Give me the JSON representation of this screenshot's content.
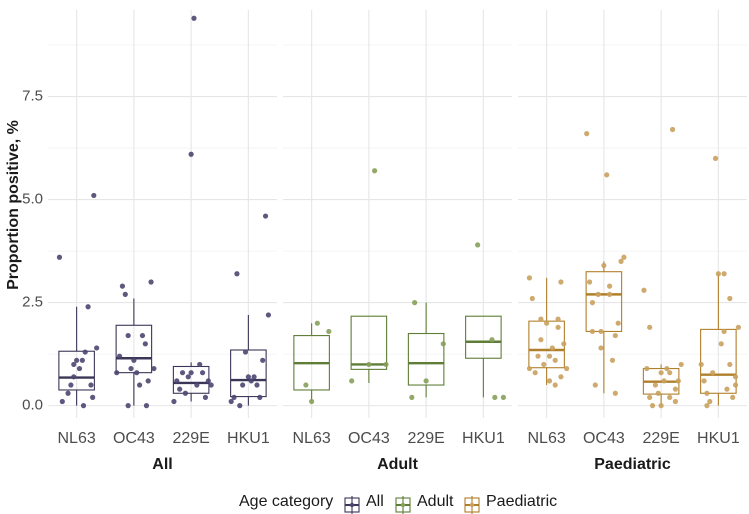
{
  "chart_data": {
    "type": "boxplot",
    "ylabel": "Proportion positive, %",
    "ylim": [
      -0.3,
      9.6
    ],
    "yticks": [
      0,
      2.5,
      5,
      7.5
    ],
    "ytick_labels": [
      "0.0",
      "2.5",
      "5.0",
      "7.5"
    ],
    "categories": [
      "NL63",
      "OC43",
      "229E",
      "HKU1"
    ],
    "legend": {
      "title": "Age category",
      "position": "bottom",
      "entries": [
        {
          "label": "All",
          "color": "#3b3658"
        },
        {
          "label": "Adult",
          "color": "#5f7d36"
        },
        {
          "label": "Paediatric",
          "color": "#b07f2b"
        }
      ]
    },
    "colors": {
      "All": "#3b3658",
      "Adult": "#5f7d36",
      "Paediatric": "#b07f2b"
    },
    "point_colors": {
      "All": "#4a4670",
      "Adult": "#86a05a",
      "Paediatric": "#c9a15e"
    },
    "panels": [
      {
        "name": "All",
        "title": "All",
        "boxes": [
          {
            "category": "NL63",
            "q1": 0.38,
            "median": 0.68,
            "q3": 1.32,
            "whisker_low": 0.0,
            "whisker_high": 2.4,
            "points": [
              [
                -0.3,
                3.6
              ],
              [
                -0.25,
                0.1
              ],
              [
                -0.15,
                0.3
              ],
              [
                -0.05,
                0.7
              ],
              [
                0.05,
                0.9
              ],
              [
                0.1,
                1.1
              ],
              [
                0.15,
                1.3
              ],
              [
                0.2,
                2.4
              ],
              [
                0.25,
                0.5
              ],
              [
                0.3,
                5.1
              ],
              [
                0.35,
                1.4
              ],
              [
                -0.1,
                0.5
              ],
              [
                0.0,
                1.1
              ],
              [
                0.12,
                0.0
              ],
              [
                0.28,
                0.2
              ],
              [
                -0.05,
                1.0
              ]
            ]
          },
          {
            "category": "OC43",
            "q1": 0.8,
            "median": 1.15,
            "q3": 1.95,
            "whisker_low": 0.0,
            "whisker_high": 2.6,
            "points": [
              [
                -0.3,
                0.8
              ],
              [
                -0.25,
                1.2
              ],
              [
                -0.2,
                2.9
              ],
              [
                -0.15,
                2.7
              ],
              [
                -0.1,
                1.7
              ],
              [
                -0.05,
                0.9
              ],
              [
                0.0,
                1.1
              ],
              [
                0.05,
                0.8
              ],
              [
                0.1,
                0.5
              ],
              [
                0.15,
                1.7
              ],
              [
                0.2,
                1.5
              ],
              [
                0.25,
                0.6
              ],
              [
                0.3,
                3.0
              ],
              [
                0.35,
                0.9
              ],
              [
                -0.1,
                0.0
              ],
              [
                0.22,
                0.0
              ]
            ]
          },
          {
            "category": "229E",
            "q1": 0.3,
            "median": 0.55,
            "q3": 0.95,
            "whisker_low": 0.1,
            "whisker_high": 1.05,
            "points": [
              [
                -0.3,
                0.1
              ],
              [
                -0.25,
                0.6
              ],
              [
                -0.2,
                0.4
              ],
              [
                -0.1,
                0.3
              ],
              [
                -0.05,
                0.7
              ],
              [
                0.0,
                0.8
              ],
              [
                0.05,
                9.4
              ],
              [
                0.1,
                0.5
              ],
              [
                0.15,
                1.0
              ],
              [
                0.2,
                0.8
              ],
              [
                0.25,
                0.2
              ],
              [
                0.3,
                0.6
              ],
              [
                -0.15,
                0.8
              ],
              [
                0.0,
                6.1
              ],
              [
                0.35,
                0.5
              ]
            ]
          },
          {
            "category": "HKU1",
            "q1": 0.22,
            "median": 0.62,
            "q3": 1.35,
            "whisker_low": 0.0,
            "whisker_high": 2.2,
            "points": [
              [
                -0.3,
                0.1
              ],
              [
                -0.25,
                0.2
              ],
              [
                -0.2,
                3.2
              ],
              [
                -0.1,
                0.5
              ],
              [
                -0.05,
                1.3
              ],
              [
                0.0,
                0.7
              ],
              [
                0.1,
                0.7
              ],
              [
                0.15,
                0.5
              ],
              [
                0.2,
                0.2
              ],
              [
                0.25,
                1.1
              ],
              [
                0.3,
                4.6
              ],
              [
                0.35,
                2.2
              ],
              [
                -0.15,
                0.0
              ],
              [
                0.05,
                0.6
              ]
            ]
          }
        ]
      },
      {
        "name": "Adult",
        "title": "Adult",
        "boxes": [
          {
            "category": "NL63",
            "q1": 0.38,
            "median": 1.03,
            "q3": 1.7,
            "whisker_low": 0.1,
            "whisker_high": 2.0,
            "points": [
              [
                0.1,
                2.0
              ],
              [
                -0.1,
                0.5
              ],
              [
                0.3,
                1.8
              ],
              [
                0.0,
                0.1
              ]
            ]
          },
          {
            "category": "OC43",
            "q1": 0.88,
            "median": 1.0,
            "q3": 2.17,
            "whisker_low": 0.55,
            "whisker_high": 2.17,
            "points": [
              [
                -0.3,
                0.6
              ],
              [
                0.0,
                1.0
              ],
              [
                0.1,
                5.7
              ],
              [
                0.3,
                1.0
              ]
            ]
          },
          {
            "category": "229E",
            "q1": 0.5,
            "median": 1.03,
            "q3": 1.75,
            "whisker_low": 0.2,
            "whisker_high": 2.5,
            "points": [
              [
                -0.2,
                2.5
              ],
              [
                0.0,
                0.6
              ],
              [
                -0.25,
                0.2
              ],
              [
                0.3,
                1.5
              ]
            ]
          },
          {
            "category": "HKU1",
            "q1": 1.15,
            "median": 1.55,
            "q3": 2.17,
            "whisker_low": 0.2,
            "whisker_high": 2.17,
            "points": [
              [
                -0.1,
                3.9
              ],
              [
                0.15,
                1.6
              ],
              [
                0.2,
                0.2
              ],
              [
                0.35,
                0.2
              ]
            ]
          }
        ]
      },
      {
        "name": "Paediatric",
        "title": "Paediatric",
        "boxes": [
          {
            "category": "NL63",
            "q1": 0.92,
            "median": 1.35,
            "q3": 2.05,
            "whisker_low": 0.5,
            "whisker_high": 3.1,
            "points": [
              [
                -0.3,
                3.1
              ],
              [
                -0.25,
                2.6
              ],
              [
                -0.2,
                0.8
              ],
              [
                -0.15,
                1.2
              ],
              [
                -0.1,
                1.6
              ],
              [
                -0.05,
                1.0
              ],
              [
                0.0,
                2.0
              ],
              [
                0.05,
                0.6
              ],
              [
                0.1,
                1.4
              ],
              [
                0.15,
                1.1
              ],
              [
                0.2,
                2.1
              ],
              [
                0.25,
                0.7
              ],
              [
                0.3,
                1.5
              ],
              [
                0.35,
                0.9
              ],
              [
                -0.1,
                2.1
              ],
              [
                0.05,
                1.2
              ],
              [
                0.25,
                3.0
              ],
              [
                -0.3,
                0.9
              ],
              [
                0.15,
                0.5
              ],
              [
                0.2,
                1.9
              ]
            ]
          },
          {
            "category": "OC43",
            "q1": 1.8,
            "median": 2.7,
            "q3": 3.25,
            "whisker_low": 0.3,
            "whisker_high": 3.5,
            "points": [
              [
                -0.3,
                6.6
              ],
              [
                -0.25,
                3.0
              ],
              [
                -0.2,
                1.8
              ],
              [
                -0.15,
                0.5
              ],
              [
                -0.1,
                2.7
              ],
              [
                -0.05,
                1.8
              ],
              [
                0.0,
                3.4
              ],
              [
                0.05,
                5.6
              ],
              [
                0.1,
                2.7
              ],
              [
                0.15,
                1.1
              ],
              [
                0.2,
                0.3
              ],
              [
                0.25,
                2.0
              ],
              [
                0.3,
                3.5
              ],
              [
                0.35,
                3.6
              ],
              [
                -0.05,
                1.4
              ],
              [
                0.1,
                2.9
              ],
              [
                0.2,
                1.7
              ],
              [
                -0.2,
                2.5
              ]
            ]
          },
          {
            "category": "229E",
            "q1": 0.28,
            "median": 0.58,
            "q3": 0.9,
            "whisker_low": 0.0,
            "whisker_high": 1.0,
            "points": [
              [
                -0.3,
                2.8
              ],
              [
                -0.25,
                0.9
              ],
              [
                -0.2,
                0.2
              ],
              [
                -0.15,
                0.0
              ],
              [
                -0.1,
                0.5
              ],
              [
                -0.05,
                0.3
              ],
              [
                0.0,
                0.8
              ],
              [
                0.05,
                0.6
              ],
              [
                0.1,
                0.9
              ],
              [
                0.15,
                0.2
              ],
              [
                0.2,
                6.7
              ],
              [
                0.25,
                0.4
              ],
              [
                0.3,
                0.6
              ],
              [
                0.35,
                1.0
              ],
              [
                0.0,
                0.0
              ],
              [
                0.15,
                0.8
              ],
              [
                -0.2,
                1.9
              ],
              [
                0.25,
                0.1
              ]
            ]
          },
          {
            "category": "HKU1",
            "q1": 0.3,
            "median": 0.75,
            "q3": 1.85,
            "whisker_low": 0.0,
            "whisker_high": 3.2,
            "points": [
              [
                -0.3,
                1.0
              ],
              [
                -0.25,
                0.6
              ],
              [
                -0.2,
                0.3
              ],
              [
                -0.15,
                0.1
              ],
              [
                -0.1,
                0.8
              ],
              [
                -0.05,
                6.0
              ],
              [
                0.0,
                3.2
              ],
              [
                0.05,
                1.5
              ],
              [
                0.1,
                1.8
              ],
              [
                0.15,
                0.4
              ],
              [
                0.2,
                2.6
              ],
              [
                0.25,
                0.2
              ],
              [
                0.3,
                0.7
              ],
              [
                0.35,
                1.9
              ],
              [
                -0.2,
                0.0
              ],
              [
                0.1,
                3.2
              ],
              [
                0.2,
                1.0
              ],
              [
                0.3,
                0.5
              ]
            ]
          }
        ]
      }
    ]
  }
}
